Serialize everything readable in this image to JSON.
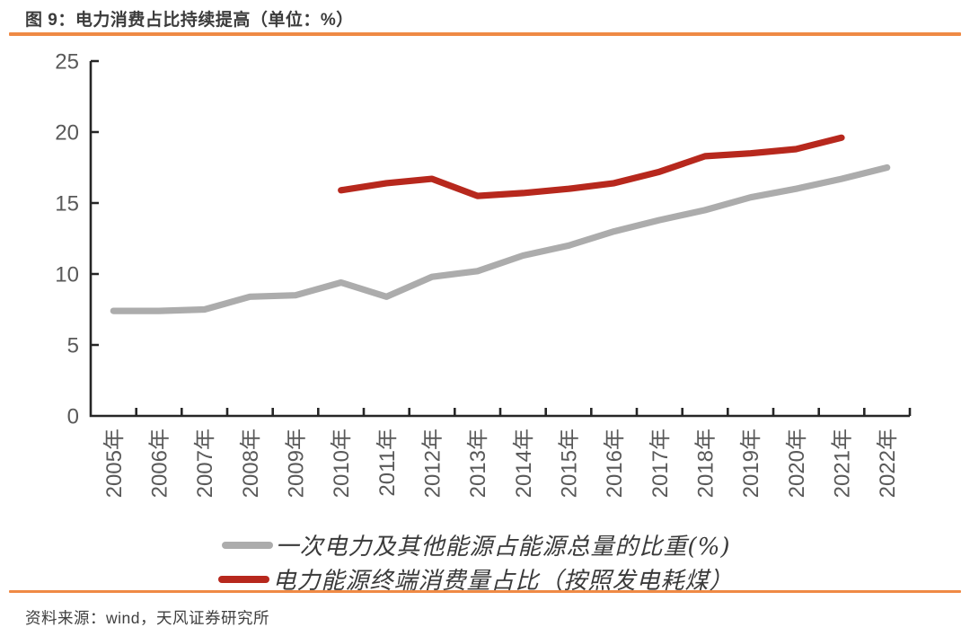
{
  "figure": {
    "title": "图 9：电力消费占比持续提高（单位：%）",
    "source": "资料来源：wind，天风证券研究所"
  },
  "colors": {
    "accent_orange": "#EF8A45",
    "axis": "#262626",
    "tick_label": "#595959",
    "title_text": "#3C3C3C",
    "legend_text": "#3A3A3A",
    "source_text": "#3F3F3F",
    "series_gray": "#ACACAC",
    "series_red": "#B7281D"
  },
  "chart_data": {
    "type": "line",
    "title": "电力消费占比持续提高",
    "unit": "%",
    "categories": [
      "2005年",
      "2006年",
      "2007年",
      "2008年",
      "2009年",
      "2010年",
      "2011年",
      "2012年",
      "2013年",
      "2014年",
      "2015年",
      "2016年",
      "2017年",
      "2018年",
      "2019年",
      "2020年",
      "2021年",
      "2022年"
    ],
    "ylim": [
      0,
      25
    ],
    "ytick_step": 5,
    "yticks": [
      0,
      5,
      10,
      15,
      20,
      25
    ],
    "grid": false,
    "legend_position": "bottom",
    "series": [
      {
        "name": "一次电力及其他能源占能源总量的比重(%)",
        "color": "#ACACAC",
        "start_category": "2005年",
        "values": [
          7.4,
          7.4,
          7.5,
          8.4,
          8.5,
          9.4,
          8.4,
          9.8,
          10.2,
          11.3,
          12.0,
          13.0,
          13.8,
          14.5,
          15.4,
          16.0,
          16.7,
          17.5
        ]
      },
      {
        "name": "电力能源终端消费量占比（按照发电耗煤）",
        "color": "#B7281D",
        "start_category": "2010年",
        "values": [
          15.9,
          16.4,
          16.7,
          15.5,
          15.7,
          16.0,
          16.4,
          17.2,
          18.3,
          18.5,
          18.8,
          19.6
        ]
      }
    ]
  }
}
